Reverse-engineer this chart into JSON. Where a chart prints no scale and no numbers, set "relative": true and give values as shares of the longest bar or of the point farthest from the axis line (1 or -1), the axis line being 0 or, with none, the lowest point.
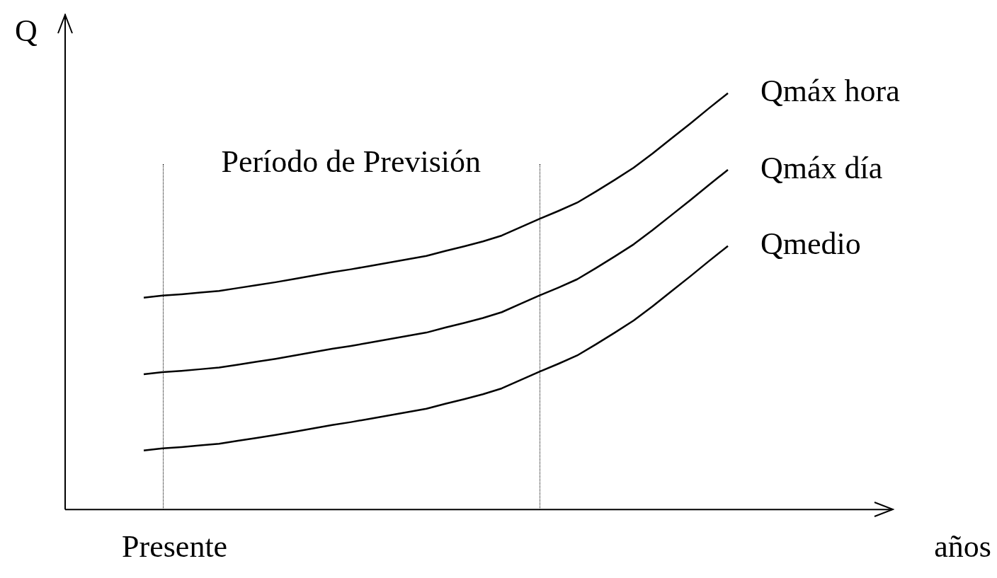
{
  "chart_data": {
    "type": "line",
    "relative": true,
    "ylabel": "Q",
    "categories": [
      null,
      null,
      null,
      null,
      null,
      null,
      null,
      null,
      null,
      null,
      null,
      null,
      null,
      null,
      null,
      null,
      null,
      null,
      null,
      null,
      null,
      null,
      null,
      null,
      null,
      null,
      null,
      null,
      null,
      null,
      null,
      null
    ],
    "series": [
      {
        "name": "Qmáx hora",
        "color": "#000000",
        "values": [
          0.509,
          0.514,
          0.517,
          0.521,
          0.525,
          0.532,
          0.539,
          0.546,
          0.554,
          0.562,
          0.57,
          0.577,
          0.585,
          0.593,
          0.601,
          0.609,
          0.621,
          0.632,
          0.644,
          0.658,
          0.678,
          0.698,
          0.717,
          0.737,
          0.764,
          0.792,
          0.821,
          0.855,
          0.891,
          0.927,
          0.964,
          1
        ]
      },
      {
        "name": "Qmáx día",
        "color": "#000000",
        "values": [
          0.325,
          0.33,
          0.333,
          0.337,
          0.341,
          0.348,
          0.355,
          0.362,
          0.37,
          0.378,
          0.386,
          0.393,
          0.401,
          0.409,
          0.417,
          0.425,
          0.437,
          0.448,
          0.46,
          0.474,
          0.494,
          0.514,
          0.533,
          0.553,
          0.58,
          0.608,
          0.637,
          0.671,
          0.707,
          0.743,
          0.78,
          0.816
        ]
      },
      {
        "name": "Qmedio",
        "color": "#000000",
        "values": [
          0.142,
          0.147,
          0.15,
          0.154,
          0.158,
          0.165,
          0.172,
          0.179,
          0.187,
          0.195,
          0.203,
          0.21,
          0.218,
          0.226,
          0.234,
          0.242,
          0.254,
          0.265,
          0.277,
          0.291,
          0.311,
          0.331,
          0.35,
          0.37,
          0.397,
          0.425,
          0.454,
          0.488,
          0.524,
          0.56,
          0.597,
          0.633
        ]
      }
    ],
    "annotations": [
      "Período de Previsión",
      "Presente",
      "años"
    ],
    "legend": false,
    "marker": "none",
    "line_style": "solid"
  }
}
